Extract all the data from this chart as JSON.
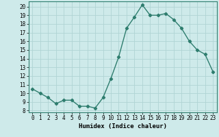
{
  "x": [
    0,
    1,
    2,
    3,
    4,
    5,
    6,
    7,
    8,
    9,
    10,
    11,
    12,
    13,
    14,
    15,
    16,
    17,
    18,
    19,
    20,
    21,
    22,
    23
  ],
  "y": [
    10.5,
    10.0,
    9.5,
    8.8,
    9.2,
    9.2,
    8.5,
    8.5,
    8.3,
    9.5,
    11.7,
    14.2,
    17.5,
    18.8,
    20.2,
    19.0,
    19.0,
    19.2,
    18.5,
    17.5,
    16.0,
    15.0,
    14.5,
    12.5
  ],
  "line_color": "#2e7d6e",
  "marker": "D",
  "marker_size": 2.2,
  "line_width": 1.0,
  "bg_color": "#ceeaea",
  "grid_color": "#b0d4d4",
  "xlabel": "Humidex (Indice chaleur)",
  "xlabel_fontsize": 6.5,
  "xlabel_fontweight": "bold",
  "ylabel_ticks": [
    8,
    9,
    10,
    11,
    12,
    13,
    14,
    15,
    16,
    17,
    18,
    19,
    20
  ],
  "xticks": [
    0,
    1,
    2,
    3,
    4,
    5,
    6,
    7,
    8,
    9,
    10,
    11,
    12,
    13,
    14,
    15,
    16,
    17,
    18,
    19,
    20,
    21,
    22,
    23
  ],
  "ylim": [
    7.8,
    20.6
  ],
  "xlim": [
    -0.5,
    23.5
  ],
  "tick_fontsize": 5.5
}
